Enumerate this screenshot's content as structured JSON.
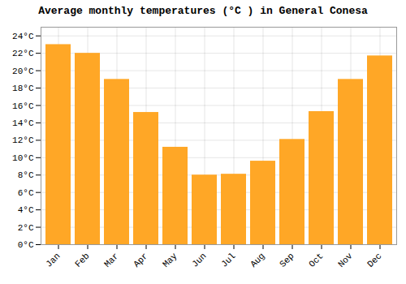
{
  "chart_data": {
    "type": "bar",
    "title": "Average monthly temperatures (°C ) in General Conesa",
    "categories": [
      "Jan",
      "Feb",
      "Mar",
      "Apr",
      "May",
      "Jun",
      "Jul",
      "Aug",
      "Sep",
      "Oct",
      "Nov",
      "Dec"
    ],
    "values": [
      23.0,
      22.0,
      19.0,
      15.2,
      11.2,
      8.0,
      8.1,
      9.6,
      12.1,
      15.3,
      19.0,
      21.7
    ],
    "color": "#FFA726",
    "ylim": [
      0,
      25
    ],
    "yticks": [
      {
        "value": 0,
        "label": "0°C"
      },
      {
        "value": 2,
        "label": "2°C"
      },
      {
        "value": 4,
        "label": "4°C"
      },
      {
        "value": 6,
        "label": "6°C"
      },
      {
        "value": 8,
        "label": "8°C"
      },
      {
        "value": 10,
        "label": "10°C"
      },
      {
        "value": 12,
        "label": "12°C"
      },
      {
        "value": 14,
        "label": "14°C"
      },
      {
        "value": 16,
        "label": "16°C"
      },
      {
        "value": 18,
        "label": "18°C"
      },
      {
        "value": 20,
        "label": "20°C"
      },
      {
        "value": 22,
        "label": "22°C"
      },
      {
        "value": 24,
        "label": "24°C"
      }
    ],
    "grid": true
  }
}
